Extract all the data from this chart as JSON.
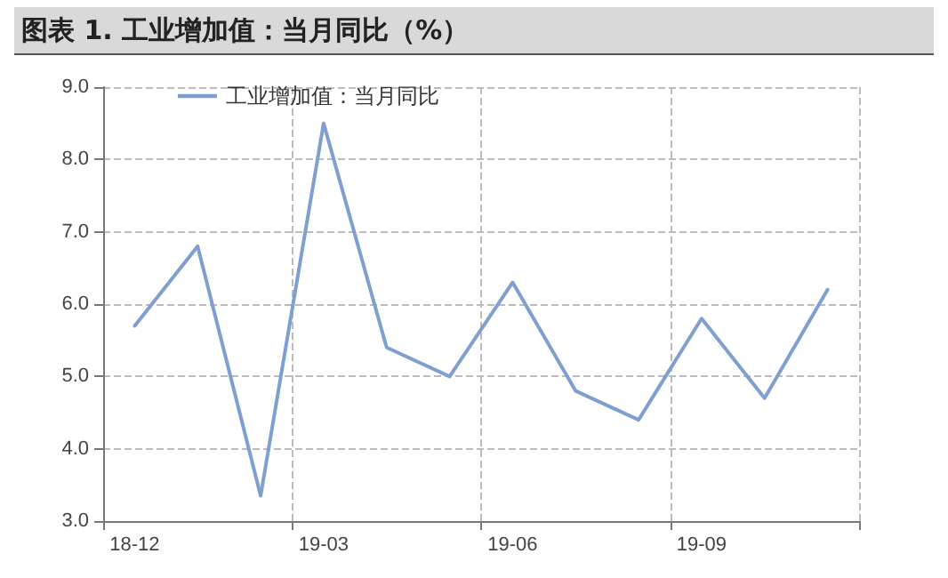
{
  "chart_data": {
    "type": "line",
    "title": "图表 1. 工业增加值：当月同比（%）",
    "categories": [
      "18-12",
      null,
      null,
      "19-03",
      null,
      null,
      "19-06",
      null,
      null,
      "19-09",
      null,
      null
    ],
    "series": [
      {
        "name": "工业增加值：当月同比",
        "color": "#7f9fd0",
        "values": [
          5.7,
          6.8,
          3.35,
          8.5,
          5.4,
          5.0,
          6.3,
          4.8,
          4.4,
          5.8,
          4.7,
          6.2
        ]
      }
    ],
    "ylim": [
      3,
      9
    ],
    "yticks": [
      {
        "value": 3,
        "label": "3.0"
      },
      {
        "value": 4,
        "label": "4.0"
      },
      {
        "value": 5,
        "label": "5.0"
      },
      {
        "value": 6,
        "label": "6.0"
      },
      {
        "value": 7,
        "label": "7.0"
      },
      {
        "value": 8,
        "label": "8.0"
      },
      {
        "value": 9,
        "label": "9.0"
      }
    ],
    "grid": true,
    "legend": "top left",
    "marker": "none",
    "line_style": "solid"
  }
}
